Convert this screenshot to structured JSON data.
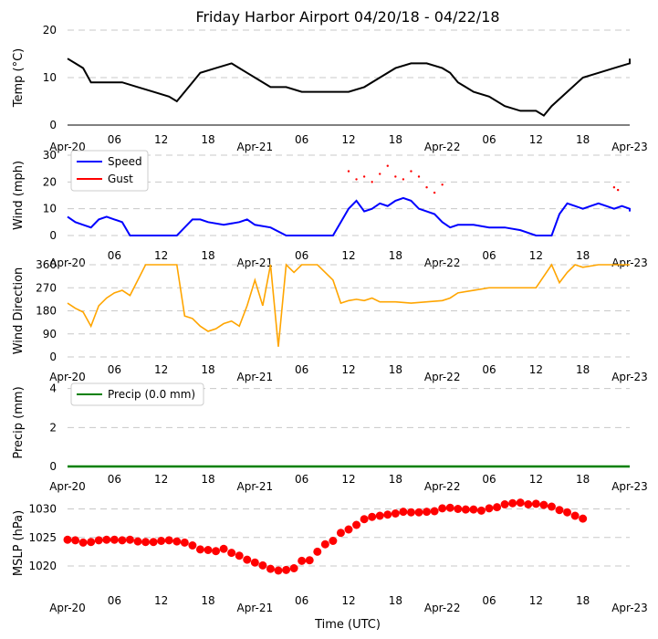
{
  "title": "Friday Harbor Airport 04/20/18 - 04/22/18",
  "x_axis_label": "Time (UTC)",
  "x_tick_labels": [
    "Apr-20",
    "06",
    "12",
    "18",
    "Apr-21",
    "06",
    "12",
    "18",
    "Apr-22",
    "06",
    "12",
    "18",
    "Apr-23"
  ],
  "colors": {
    "temp": "#000000",
    "speed": "#0000ff",
    "gust": "#ff0000",
    "direction": "#ffa500",
    "precip": "#008000",
    "mslp": "#ff0000",
    "grid": "#c8c8c8"
  },
  "chart_data": [
    {
      "type": "line",
      "ylabel": "Temp (°C)",
      "ylim": [
        0,
        20
      ],
      "yticks": [
        0,
        10,
        20
      ],
      "grid": true,
      "x_unit": "hours since 2018-04-20 00 UTC",
      "series": [
        {
          "values": [
            [
              0,
              14
            ],
            [
              1,
              13
            ],
            [
              2,
              12
            ],
            [
              3,
              9
            ],
            [
              5,
              9
            ],
            [
              7,
              9
            ],
            [
              9,
              8
            ],
            [
              11,
              7
            ],
            [
              13,
              6
            ],
            [
              14,
              5
            ],
            [
              15,
              7
            ],
            [
              16,
              9
            ],
            [
              17,
              11
            ],
            [
              19,
              12
            ],
            [
              21,
              13
            ],
            [
              22,
              12
            ],
            [
              23,
              11
            ],
            [
              24,
              10
            ],
            [
              26,
              8
            ],
            [
              28,
              8
            ],
            [
              30,
              7
            ],
            [
              32,
              7
            ],
            [
              34,
              7
            ],
            [
              36,
              7
            ],
            [
              38,
              8
            ],
            [
              40,
              10
            ],
            [
              42,
              12
            ],
            [
              44,
              13
            ],
            [
              46,
              13
            ],
            [
              48,
              12
            ],
            [
              49,
              11
            ],
            [
              50,
              9
            ],
            [
              52,
              7
            ],
            [
              54,
              6
            ],
            [
              56,
              4
            ],
            [
              58,
              3
            ],
            [
              60,
              3
            ],
            [
              61,
              2
            ],
            [
              62,
              4
            ],
            [
              64,
              7
            ],
            [
              66,
              10
            ],
            [
              68,
              11
            ],
            [
              70,
              12
            ],
            [
              72,
              13
            ],
            [
              73,
              14
            ],
            [
              74,
              14
            ]
          ]
        }
      ]
    },
    {
      "type": "line",
      "ylabel": "Wind (mph)",
      "ylim": [
        0,
        30
      ],
      "yticks": [
        0,
        10,
        20,
        30
      ],
      "grid": true,
      "legend": "top-left",
      "series": [
        {
          "name": "Speed",
          "values": [
            [
              0,
              7
            ],
            [
              1,
              5
            ],
            [
              2,
              4
            ],
            [
              3,
              3
            ],
            [
              4,
              6
            ],
            [
              5,
              7
            ],
            [
              6,
              6
            ],
            [
              7,
              5
            ],
            [
              8,
              0
            ],
            [
              10,
              0
            ],
            [
              12,
              0
            ],
            [
              14,
              0
            ],
            [
              15,
              3
            ],
            [
              16,
              6
            ],
            [
              17,
              6
            ],
            [
              18,
              5
            ],
            [
              20,
              4
            ],
            [
              22,
              5
            ],
            [
              23,
              6
            ],
            [
              24,
              4
            ],
            [
              26,
              3
            ],
            [
              28,
              0
            ],
            [
              30,
              0
            ],
            [
              32,
              0
            ],
            [
              34,
              0
            ],
            [
              35,
              5
            ],
            [
              36,
              10
            ],
            [
              37,
              13
            ],
            [
              38,
              9
            ],
            [
              39,
              10
            ],
            [
              40,
              12
            ],
            [
              41,
              11
            ],
            [
              42,
              13
            ],
            [
              43,
              14
            ],
            [
              44,
              13
            ],
            [
              45,
              10
            ],
            [
              46,
              9
            ],
            [
              47,
              8
            ],
            [
              48,
              5
            ],
            [
              49,
              3
            ],
            [
              50,
              4
            ],
            [
              52,
              4
            ],
            [
              54,
              3
            ],
            [
              56,
              3
            ],
            [
              58,
              2
            ],
            [
              60,
              0
            ],
            [
              62,
              0
            ],
            [
              63,
              8
            ],
            [
              64,
              12
            ],
            [
              65,
              11
            ],
            [
              66,
              10
            ],
            [
              67,
              11
            ],
            [
              68,
              12
            ],
            [
              69,
              11
            ],
            [
              70,
              10
            ],
            [
              71,
              11
            ],
            [
              72,
              10
            ],
            [
              73,
              9
            ],
            [
              74,
              9
            ]
          ]
        },
        {
          "name": "Gust",
          "values": [
            [
              36,
              24
            ],
            [
              37,
              21
            ],
            [
              38,
              22
            ],
            [
              39,
              20
            ],
            [
              40,
              23
            ],
            [
              41,
              26
            ],
            [
              42,
              22
            ],
            [
              43,
              21
            ],
            [
              44,
              24
            ],
            [
              45,
              22
            ],
            [
              46,
              18
            ],
            [
              47,
              16
            ],
            [
              48,
              19
            ],
            [
              70,
              18
            ],
            [
              70.5,
              17
            ]
          ]
        }
      ]
    },
    {
      "type": "scatter",
      "ylabel": "Wind Direction",
      "ylim": [
        0,
        360
      ],
      "yticks": [
        0,
        90,
        180,
        270,
        360
      ],
      "grid": true,
      "series": [
        {
          "values": [
            [
              0,
              210
            ],
            [
              1,
              190
            ],
            [
              2,
              175
            ],
            [
              3,
              120
            ],
            [
              4,
              200
            ],
            [
              5,
              230
            ],
            [
              6,
              250
            ],
            [
              7,
              260
            ],
            [
              8,
              240
            ],
            [
              9,
              300
            ],
            [
              10,
              360
            ],
            [
              12,
              360
            ],
            [
              14,
              360
            ],
            [
              15,
              160
            ],
            [
              16,
              150
            ],
            [
              17,
              120
            ],
            [
              18,
              100
            ],
            [
              19,
              110
            ],
            [
              20,
              130
            ],
            [
              21,
              140
            ],
            [
              22,
              120
            ],
            [
              23,
              200
            ],
            [
              24,
              300
            ],
            [
              25,
              200
            ],
            [
              26,
              360
            ],
            [
              27,
              40
            ],
            [
              28,
              360
            ],
            [
              29,
              330
            ],
            [
              30,
              360
            ],
            [
              32,
              360
            ],
            [
              34,
              300
            ],
            [
              35,
              210
            ],
            [
              36,
              220
            ],
            [
              37,
              225
            ],
            [
              38,
              220
            ],
            [
              39,
              230
            ],
            [
              40,
              215
            ],
            [
              42,
              215
            ],
            [
              44,
              210
            ],
            [
              46,
              215
            ],
            [
              48,
              220
            ],
            [
              49,
              230
            ],
            [
              50,
              250
            ],
            [
              52,
              260
            ],
            [
              54,
              270
            ],
            [
              56,
              270
            ],
            [
              58,
              270
            ],
            [
              60,
              270
            ],
            [
              62,
              360
            ],
            [
              63,
              290
            ],
            [
              64,
              330
            ],
            [
              65,
              360
            ],
            [
              66,
              350
            ],
            [
              68,
              360
            ],
            [
              70,
              360
            ],
            [
              72,
              360
            ],
            [
              74,
              360
            ]
          ]
        }
      ]
    },
    {
      "type": "line",
      "ylabel": "Precip (mm)",
      "ylim": [
        0,
        4.5
      ],
      "yticks": [
        0,
        2,
        4
      ],
      "grid": true,
      "legend": "top-left",
      "series": [
        {
          "name": "Precip (0.0 mm)",
          "values": [
            [
              0,
              0
            ],
            [
              74,
              0
            ]
          ]
        }
      ]
    },
    {
      "type": "scatter",
      "ylabel": "MSLP (hPa)",
      "ylim": [
        1016,
        1032
      ],
      "yticks": [
        1020,
        1025,
        1030
      ],
      "grid": true,
      "series": [
        {
          "values": [
            [
              0,
              1024.6
            ],
            [
              1,
              1024.5
            ],
            [
              2,
              1024.1
            ],
            [
              3,
              1024.2
            ],
            [
              4,
              1024.5
            ],
            [
              5,
              1024.6
            ],
            [
              6,
              1024.6
            ],
            [
              7,
              1024.5
            ],
            [
              8,
              1024.6
            ],
            [
              9,
              1024.3
            ],
            [
              10,
              1024.2
            ],
            [
              11,
              1024.2
            ],
            [
              12,
              1024.4
            ],
            [
              13,
              1024.5
            ],
            [
              14,
              1024.3
            ],
            [
              15,
              1024.1
            ],
            [
              16,
              1023.6
            ],
            [
              17,
              1022.9
            ],
            [
              18,
              1022.8
            ],
            [
              19,
              1022.6
            ],
            [
              20,
              1023.0
            ],
            [
              21,
              1022.3
            ],
            [
              22,
              1021.8
            ],
            [
              23,
              1021.1
            ],
            [
              24,
              1020.6
            ],
            [
              25,
              1020.1
            ],
            [
              26,
              1019.5
            ],
            [
              27,
              1019.2
            ],
            [
              28,
              1019.3
            ],
            [
              29,
              1019.6
            ],
            [
              30,
              1020.9
            ],
            [
              31,
              1021.0
            ],
            [
              32,
              1022.5
            ],
            [
              33,
              1023.8
            ],
            [
              34,
              1024.4
            ],
            [
              35,
              1025.8
            ],
            [
              36,
              1026.4
            ],
            [
              37,
              1027.2
            ],
            [
              38,
              1028.2
            ],
            [
              39,
              1028.6
            ],
            [
              40,
              1028.8
            ],
            [
              41,
              1029.0
            ],
            [
              42,
              1029.2
            ],
            [
              43,
              1029.5
            ],
            [
              44,
              1029.4
            ],
            [
              45,
              1029.4
            ],
            [
              46,
              1029.5
            ],
            [
              47,
              1029.6
            ],
            [
              48,
              1030.1
            ],
            [
              49,
              1030.2
            ],
            [
              50,
              1030.0
            ],
            [
              51,
              1029.9
            ],
            [
              52,
              1029.9
            ],
            [
              53,
              1029.7
            ],
            [
              54,
              1030.1
            ],
            [
              55,
              1030.3
            ],
            [
              56,
              1030.8
            ],
            [
              57,
              1031.0
            ],
            [
              58,
              1031.1
            ],
            [
              59,
              1030.8
            ],
            [
              60,
              1030.9
            ],
            [
              61,
              1030.7
            ],
            [
              62,
              1030.4
            ],
            [
              63,
              1029.8
            ],
            [
              64,
              1029.4
            ],
            [
              65,
              1028.8
            ],
            [
              66,
              1028.3
            ]
          ]
        }
      ]
    }
  ]
}
